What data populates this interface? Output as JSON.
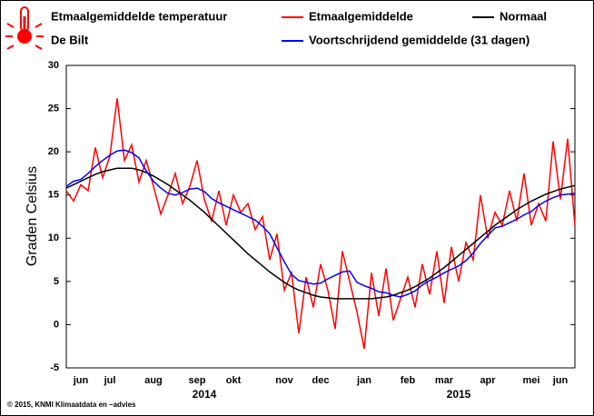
{
  "chart_data": {
    "type": "line",
    "title": "Etmaalgemiddelde temperatuur",
    "subtitle": "De Bilt",
    "ylabel": "Graden Celsius",
    "footer": "© 2015, KNMI Klimaatdata en –advies",
    "categories": [
      null,
      null,
      "jun",
      null,
      null,
      null,
      "jul",
      null,
      null,
      null,
      null,
      null,
      "aug",
      null,
      null,
      null,
      null,
      null,
      "sep",
      null,
      null,
      null,
      null,
      "okt",
      null,
      null,
      null,
      null,
      null,
      null,
      "nov",
      null,
      null,
      null,
      null,
      "dec",
      null,
      null,
      null,
      null,
      null,
      "jan",
      null,
      null,
      null,
      null,
      null,
      "feb",
      null,
      null,
      null,
      null,
      "mar",
      null,
      null,
      null,
      null,
      null,
      "apr",
      null,
      null,
      null,
      null,
      null,
      "mei",
      null,
      null,
      null,
      "jun",
      null,
      null
    ],
    "category_groups": [
      null,
      null,
      null,
      null,
      null,
      null,
      null,
      null,
      null,
      null,
      null,
      null,
      null,
      null,
      null,
      null,
      null,
      null,
      null,
      "2014",
      null,
      null,
      null,
      null,
      null,
      null,
      null,
      null,
      null,
      null,
      null,
      null,
      null,
      null,
      null,
      null,
      null,
      null,
      null,
      null,
      null,
      null,
      null,
      null,
      null,
      null,
      null,
      null,
      null,
      null,
      null,
      null,
      null,
      null,
      "2015",
      null,
      null,
      null,
      null,
      null,
      null,
      null,
      null,
      null,
      null,
      null,
      null,
      null,
      null,
      null,
      null
    ],
    "series": [
      {
        "name": "Etmaalgemiddelde",
        "color": "#ff0000",
        "values": [
          15.5,
          14.3,
          16.2,
          15.5,
          20.5,
          17.0,
          19.5,
          26.2,
          19.0,
          20.8,
          16.5,
          19.0,
          16.0,
          12.8,
          15.0,
          17.5,
          14.0,
          16.0,
          19.0,
          14.5,
          12.0,
          15.5,
          11.5,
          15.0,
          13.0,
          14.0,
          11.0,
          12.5,
          7.5,
          10.5,
          4.0,
          6.0,
          -1.0,
          5.5,
          2.0,
          7.0,
          4.0,
          -0.5,
          8.5,
          5.0,
          1.5,
          -2.8,
          6.0,
          1.0,
          6.5,
          0.5,
          3.0,
          5.5,
          2.0,
          7.0,
          3.5,
          8.5,
          2.5,
          9.0,
          5.0,
          9.5,
          7.5,
          15.0,
          10.0,
          13.0,
          11.5,
          15.5,
          12.0,
          17.5,
          11.5,
          14.0,
          12.0,
          21.2,
          14.5,
          21.5,
          11.5
        ]
      },
      {
        "name": "Normaal",
        "color": "#000000",
        "values": [
          15.8,
          16.2,
          16.6,
          17.0,
          17.4,
          17.7,
          17.9,
          18.1,
          18.1,
          18.1,
          17.9,
          17.6,
          17.2,
          16.7,
          16.2,
          15.6,
          15.0,
          14.4,
          13.7,
          13.0,
          12.2,
          11.4,
          10.6,
          9.8,
          9.0,
          8.2,
          7.5,
          6.8,
          6.1,
          5.5,
          4.9,
          4.4,
          4.0,
          3.7,
          3.4,
          3.2,
          3.1,
          3.0,
          3.0,
          3.0,
          3.0,
          3.0,
          3.0,
          3.1,
          3.2,
          3.4,
          3.7,
          4.0,
          4.4,
          4.9,
          5.4,
          6.0,
          6.6,
          7.3,
          8.0,
          8.7,
          9.4,
          10.1,
          10.8,
          11.5,
          12.1,
          12.7,
          13.3,
          13.8,
          14.3,
          14.7,
          15.1,
          15.4,
          15.7,
          15.9,
          16.1
        ]
      },
      {
        "name": "Voortschrijdend gemiddelde (31 dagen)",
        "color": "#0000ff",
        "values": [
          16.0,
          16.6,
          16.8,
          17.5,
          18.3,
          19.0,
          19.6,
          20.1,
          20.2,
          19.9,
          19.3,
          17.8,
          16.6,
          15.8,
          15.2,
          15.0,
          15.3,
          15.7,
          15.8,
          15.4,
          14.6,
          14.1,
          13.7,
          13.3,
          12.9,
          12.5,
          12.1,
          11.4,
          10.5,
          8.9,
          7.3,
          5.8,
          5.1,
          4.9,
          4.7,
          4.8,
          5.3,
          5.7,
          6.1,
          6.2,
          4.9,
          4.5,
          4.2,
          3.8,
          3.7,
          3.4,
          3.2,
          3.5,
          3.9,
          4.6,
          5.1,
          5.5,
          6.0,
          6.4,
          6.8,
          7.4,
          8.3,
          9.4,
          10.3,
          11.2,
          11.4,
          11.8,
          12.2,
          12.7,
          13.1,
          13.8,
          14.3,
          14.7,
          15.0,
          15.1,
          15.2
        ]
      }
    ],
    "ylim": [
      -5,
      30
    ],
    "yticks": [
      -5,
      0,
      5,
      10,
      15,
      20,
      25,
      30
    ],
    "grid": false
  }
}
